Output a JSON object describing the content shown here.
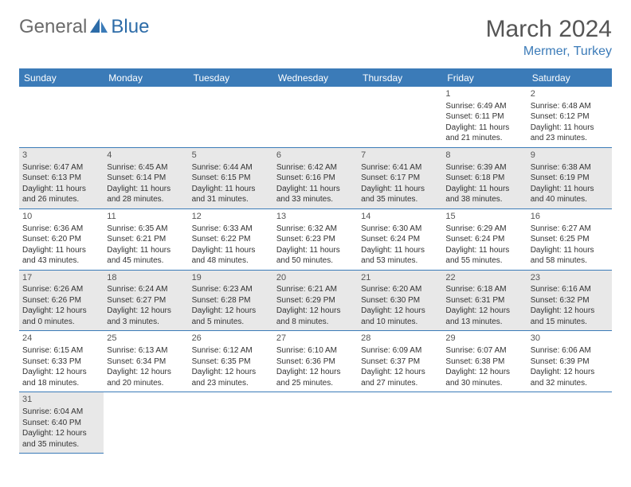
{
  "logo": {
    "general": "General",
    "blue": "Blue"
  },
  "title": "March 2024",
  "location": "Mermer, Turkey",
  "dayHeaders": [
    "Sunday",
    "Monday",
    "Tuesday",
    "Wednesday",
    "Thursday",
    "Friday",
    "Saturday"
  ],
  "colors": {
    "accent": "#3b7bb8",
    "headerText": "#ffffff",
    "shaded": "#e8e8e8",
    "body": "#333333",
    "title": "#555555",
    "logoGray": "#6b6b6b",
    "logoBlue": "#2d6ca8"
  },
  "startOffset": 5,
  "days": [
    {
      "n": 1,
      "sr": "6:49 AM",
      "ss": "6:11 PM",
      "dl": "11 hours and 21 minutes."
    },
    {
      "n": 2,
      "sr": "6:48 AM",
      "ss": "6:12 PM",
      "dl": "11 hours and 23 minutes."
    },
    {
      "n": 3,
      "sr": "6:47 AM",
      "ss": "6:13 PM",
      "dl": "11 hours and 26 minutes."
    },
    {
      "n": 4,
      "sr": "6:45 AM",
      "ss": "6:14 PM",
      "dl": "11 hours and 28 minutes."
    },
    {
      "n": 5,
      "sr": "6:44 AM",
      "ss": "6:15 PM",
      "dl": "11 hours and 31 minutes."
    },
    {
      "n": 6,
      "sr": "6:42 AM",
      "ss": "6:16 PM",
      "dl": "11 hours and 33 minutes."
    },
    {
      "n": 7,
      "sr": "6:41 AM",
      "ss": "6:17 PM",
      "dl": "11 hours and 35 minutes."
    },
    {
      "n": 8,
      "sr": "6:39 AM",
      "ss": "6:18 PM",
      "dl": "11 hours and 38 minutes."
    },
    {
      "n": 9,
      "sr": "6:38 AM",
      "ss": "6:19 PM",
      "dl": "11 hours and 40 minutes."
    },
    {
      "n": 10,
      "sr": "6:36 AM",
      "ss": "6:20 PM",
      "dl": "11 hours and 43 minutes."
    },
    {
      "n": 11,
      "sr": "6:35 AM",
      "ss": "6:21 PM",
      "dl": "11 hours and 45 minutes."
    },
    {
      "n": 12,
      "sr": "6:33 AM",
      "ss": "6:22 PM",
      "dl": "11 hours and 48 minutes."
    },
    {
      "n": 13,
      "sr": "6:32 AM",
      "ss": "6:23 PM",
      "dl": "11 hours and 50 minutes."
    },
    {
      "n": 14,
      "sr": "6:30 AM",
      "ss": "6:24 PM",
      "dl": "11 hours and 53 minutes."
    },
    {
      "n": 15,
      "sr": "6:29 AM",
      "ss": "6:24 PM",
      "dl": "11 hours and 55 minutes."
    },
    {
      "n": 16,
      "sr": "6:27 AM",
      "ss": "6:25 PM",
      "dl": "11 hours and 58 minutes."
    },
    {
      "n": 17,
      "sr": "6:26 AM",
      "ss": "6:26 PM",
      "dl": "12 hours and 0 minutes."
    },
    {
      "n": 18,
      "sr": "6:24 AM",
      "ss": "6:27 PM",
      "dl": "12 hours and 3 minutes."
    },
    {
      "n": 19,
      "sr": "6:23 AM",
      "ss": "6:28 PM",
      "dl": "12 hours and 5 minutes."
    },
    {
      "n": 20,
      "sr": "6:21 AM",
      "ss": "6:29 PM",
      "dl": "12 hours and 8 minutes."
    },
    {
      "n": 21,
      "sr": "6:20 AM",
      "ss": "6:30 PM",
      "dl": "12 hours and 10 minutes."
    },
    {
      "n": 22,
      "sr": "6:18 AM",
      "ss": "6:31 PM",
      "dl": "12 hours and 13 minutes."
    },
    {
      "n": 23,
      "sr": "6:16 AM",
      "ss": "6:32 PM",
      "dl": "12 hours and 15 minutes."
    },
    {
      "n": 24,
      "sr": "6:15 AM",
      "ss": "6:33 PM",
      "dl": "12 hours and 18 minutes."
    },
    {
      "n": 25,
      "sr": "6:13 AM",
      "ss": "6:34 PM",
      "dl": "12 hours and 20 minutes."
    },
    {
      "n": 26,
      "sr": "6:12 AM",
      "ss": "6:35 PM",
      "dl": "12 hours and 23 minutes."
    },
    {
      "n": 27,
      "sr": "6:10 AM",
      "ss": "6:36 PM",
      "dl": "12 hours and 25 minutes."
    },
    {
      "n": 28,
      "sr": "6:09 AM",
      "ss": "6:37 PM",
      "dl": "12 hours and 27 minutes."
    },
    {
      "n": 29,
      "sr": "6:07 AM",
      "ss": "6:38 PM",
      "dl": "12 hours and 30 minutes."
    },
    {
      "n": 30,
      "sr": "6:06 AM",
      "ss": "6:39 PM",
      "dl": "12 hours and 32 minutes."
    },
    {
      "n": 31,
      "sr": "6:04 AM",
      "ss": "6:40 PM",
      "dl": "12 hours and 35 minutes."
    }
  ],
  "labels": {
    "sunrise": "Sunrise: ",
    "sunset": "Sunset: ",
    "daylight": "Daylight: "
  }
}
